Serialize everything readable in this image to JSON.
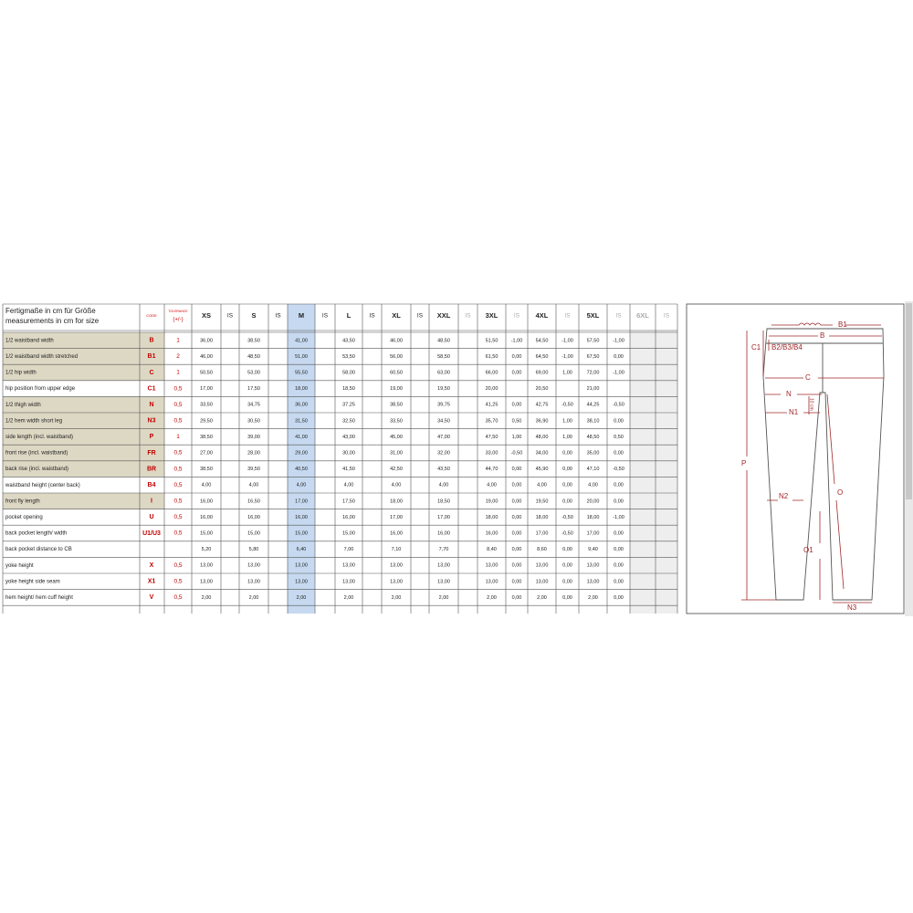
{
  "header": {
    "title_line1": "Fertigmaße in cm für Größe",
    "title_line2": "measurements in cm for size",
    "code": "CODE",
    "tolerance_line1": "TOLERANCE",
    "tolerance_line2": "(+/-)",
    "columns": [
      "XS",
      "IS",
      "S",
      "IS",
      "M",
      "IS",
      "L",
      "IS",
      "XL",
      "IS",
      "XXL",
      "IS",
      "3XL",
      "IS",
      "4XL",
      "IS",
      "5XL",
      "IS",
      "6XL",
      "IS"
    ]
  },
  "table": {
    "rows": [
      {
        "label": "1/2 waistband width",
        "code": "B",
        "tolerance": "1",
        "cells": [
          "36,00",
          null,
          "38,50",
          null,
          "41,00",
          null,
          "43,50",
          null,
          "46,00",
          null,
          "48,50",
          null,
          "51,50",
          "-1,00",
          "54,50",
          "-1,00",
          "57,50",
          "-1,00",
          null,
          null
        ]
      },
      {
        "label": "1/2 waistband width stretched",
        "code": "B1",
        "tolerance": "2",
        "cells": [
          "46,00",
          null,
          "48,50",
          null,
          "51,00",
          null,
          "53,50",
          null,
          "56,00",
          null,
          "58,50",
          null,
          "61,50",
          "0,00",
          "64,50",
          "-1,00",
          "67,50",
          "0,00",
          null,
          null
        ]
      },
      {
        "label": "1/2 hip width",
        "code": "C",
        "tolerance": "1",
        "cells": [
          "50,50",
          null,
          "53,00",
          null,
          "55,50",
          null,
          "58,00",
          null,
          "60,50",
          null,
          "63,00",
          null,
          "66,00",
          "0,00",
          "69,00",
          "1,00",
          "72,00",
          "-1,00",
          null,
          null
        ]
      },
      {
        "label": "hip position from upper edge",
        "code": "C1",
        "tolerance": "0,5",
        "cells": [
          "17,00",
          null,
          "17,50",
          null,
          "18,00",
          null,
          "18,50",
          null,
          "19,00",
          null,
          "19,50",
          null,
          "20,00",
          null,
          "20,50",
          null,
          "21,00",
          null,
          null,
          null
        ]
      },
      {
        "label": "1/2 thigh width",
        "code": "N",
        "tolerance": "0,5",
        "cells": [
          "33,50",
          null,
          "34,75",
          null,
          "36,00",
          null,
          "37,25",
          null,
          "38,50",
          null,
          "39,75",
          null,
          "41,25",
          "0,00",
          "42,75",
          "-0,50",
          "44,25",
          "-0,50",
          null,
          null
        ]
      },
      {
        "label": "1/2 hem width short leg",
        "code": "N3",
        "tolerance": "0,5",
        "cells": [
          "29,50",
          null,
          "30,50",
          null,
          "31,50",
          null,
          "32,50",
          null,
          "33,50",
          null,
          "34,50",
          null,
          "35,70",
          "0,50",
          "36,90",
          "1,00",
          "38,10",
          "0,00",
          null,
          null
        ]
      },
      {
        "label": "side length (incl. waistband)",
        "code": "P",
        "tolerance": "1",
        "cells": [
          "38,50",
          null,
          "39,00",
          null,
          "41,00",
          null,
          "43,00",
          null,
          "45,00",
          null,
          "47,00",
          null,
          "47,50",
          "1,00",
          "48,00",
          "1,00",
          "48,50",
          "0,50",
          null,
          null
        ]
      },
      {
        "label": "front rise (incl. waistband)",
        "code": "FR",
        "tolerance": "0,5",
        "cells": [
          "27,00",
          null,
          "28,00",
          null,
          "29,00",
          null,
          "30,00",
          null,
          "31,00",
          null,
          "32,00",
          null,
          "33,00",
          "-0,50",
          "34,00",
          "0,00",
          "35,00",
          "0,00",
          null,
          null
        ]
      },
      {
        "label": "back rise (incl. waistband)",
        "code": "BR",
        "tolerance": "0,5",
        "cells": [
          "38,50",
          null,
          "39,50",
          null,
          "40,50",
          null,
          "41,50",
          null,
          "42,50",
          null,
          "43,50",
          null,
          "44,70",
          "0,00",
          "45,90",
          "0,00",
          "47,10",
          "-0,50",
          null,
          null
        ]
      },
      {
        "label": "waistband height (center back)",
        "code": "B4",
        "tolerance": "0,5",
        "cells": [
          "4,00",
          null,
          "4,00",
          null,
          "4,00",
          null,
          "4,00",
          null,
          "4,00",
          null,
          "4,00",
          null,
          "4,00",
          "0,00",
          "4,00",
          "0,00",
          "4,00",
          "0,00",
          null,
          null
        ]
      },
      {
        "label": "front fly length",
        "code": "I",
        "tolerance": "0,5",
        "cells": [
          "16,00",
          null,
          "16,50",
          null,
          "17,00",
          null,
          "17,50",
          null,
          "18,00",
          null,
          "18,50",
          null,
          "19,00",
          "0,00",
          "19,50",
          "0,00",
          "20,00",
          "0,00",
          null,
          null
        ]
      },
      {
        "label": "pocket opening",
        "code": "U",
        "tolerance": "0,5",
        "cells": [
          "16,00",
          null,
          "16,00",
          null,
          "16,00",
          null,
          "16,00",
          null,
          "17,00",
          null,
          "17,00",
          null,
          "18,00",
          "0,00",
          "18,00",
          "-0,50",
          "18,00",
          "-1,00",
          null,
          null
        ]
      },
      {
        "label": "back pocket length/ width",
        "code": "U1/U3",
        "tolerance": "0,5",
        "cells": [
          "15,00",
          null,
          "15,00",
          null,
          "15,00",
          null,
          "15,00",
          null,
          "16,00",
          null,
          "16,00",
          null,
          "16,00",
          "0,00",
          "17,00",
          "-0,50",
          "17,00",
          "0,00",
          null,
          null
        ]
      },
      {
        "label": "back pocket distance to CB",
        "code": null,
        "tolerance": null,
        "cells": [
          "5,20",
          null,
          "5,80",
          null,
          "6,40",
          null,
          "7,00",
          null,
          "7,10",
          null,
          "7,70",
          null,
          "8,40",
          "0,00",
          "8,60",
          "0,00",
          "9,40",
          "0,00",
          null,
          null
        ]
      },
      {
        "label": "yoke height",
        "code": "X",
        "tolerance": "0,5",
        "cells": [
          "13,00",
          null,
          "13,00",
          null,
          "13,00",
          null,
          "13,00",
          null,
          "13,00",
          null,
          "13,00",
          null,
          "13,00",
          "0,00",
          "13,00",
          "0,00",
          "13,00",
          "0,00",
          null,
          null
        ]
      },
      {
        "label": "yoke height side seam",
        "code": "X1",
        "tolerance": "0,5",
        "cells": [
          "13,00",
          null,
          "13,00",
          null,
          "13,00",
          null,
          "13,00",
          null,
          "13,00",
          null,
          "13,00",
          null,
          "13,00",
          "0,00",
          "13,00",
          "0,00",
          "13,00",
          "0,00",
          null,
          null
        ]
      },
      {
        "label": "hem height/ hem cuff height",
        "code": "V",
        "tolerance": "0,5",
        "cells": [
          "2,00",
          null,
          "2,00",
          null,
          "2,00",
          null,
          "2,00",
          null,
          "2,00",
          null,
          "2,00",
          null,
          "2,00",
          "0,00",
          "2,00",
          "0,00",
          "2,00",
          "0,00",
          null,
          null
        ]
      }
    ]
  },
  "diagram": {
    "labels": {
      "b1": "B1",
      "b": "B",
      "c1": "C1",
      "b2": "B2/B3/B4",
      "c": "C",
      "n": "N",
      "ten_cm": "10 cm",
      "n1": "N1",
      "p": "P",
      "n2": "N2",
      "o": "O",
      "o1": "O1",
      "n3": "N3"
    }
  }
}
